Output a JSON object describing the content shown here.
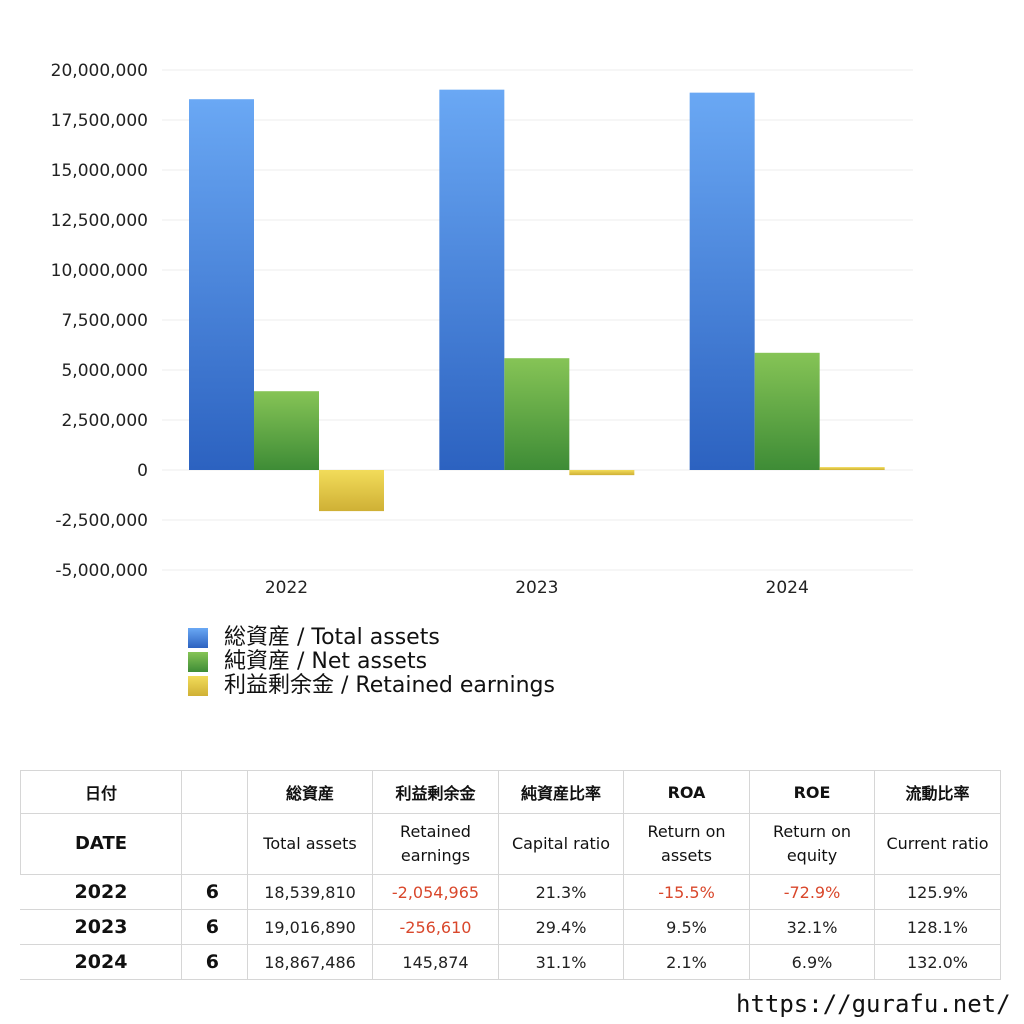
{
  "chart_data": {
    "type": "bar",
    "categories": [
      "2022",
      "2023",
      "2024"
    ],
    "series": [
      {
        "name": "総資産 / Total assets",
        "values": [
          18539810,
          19016890,
          18867486
        ]
      },
      {
        "name": "純資産 / Net assets",
        "values": [
          3940000,
          5590000,
          5860000
        ]
      },
      {
        "name": "利益剰余金 / Retained earnings",
        "values": [
          -2054965,
          -256610,
          145874
        ]
      }
    ],
    "ylim": [
      -5000000,
      20000000
    ],
    "yticks": [
      20000000,
      17500000,
      15000000,
      12500000,
      10000000,
      7500000,
      5000000,
      2500000,
      0,
      -2500000,
      -5000000
    ],
    "ytick_labels": [
      "20,000,000",
      "17,500,000",
      "15,000,000",
      "12,500,000",
      "10,000,000",
      "7,500,000",
      "5,000,000",
      "2,500,000",
      "0",
      "-2,500,000",
      "-5,000,000"
    ],
    "grid": true,
    "legend": "bottom-left",
    "colors": {
      "total_assets": [
        "#6aa8f4",
        "#2c62c0"
      ],
      "net_assets": [
        "#86c456",
        "#3e8c36"
      ],
      "retained_earnings": [
        "#f2dc5a",
        "#cfb035"
      ]
    }
  },
  "legend": {
    "total_assets": "総資産 / Total assets",
    "net_assets": "純資産 / Net assets",
    "retained_earnings": "利益剰余金 / Retained earnings"
  },
  "table": {
    "header_jp": {
      "date": "日付",
      "total_assets": "総資産",
      "retained_earnings": "利益剰余金",
      "capital_ratio": "純資産比率",
      "roa": "ROA",
      "roe": "ROE",
      "current_ratio": "流動比率"
    },
    "header_en": {
      "date": "DATE",
      "total_assets": "Total assets",
      "retained_earnings": "Retained earnings",
      "capital_ratio": "Capital ratio",
      "roa": "Return on assets",
      "roe": "Return on equity",
      "current_ratio": "Current ratio"
    },
    "rows": [
      {
        "year": "2022",
        "month": "6",
        "total_assets": "18,539,810",
        "retained_earnings": "-2,054,965",
        "capital_ratio": "21.3%",
        "roa": "-15.5%",
        "roe": "-72.9%",
        "current_ratio": "125.9%"
      },
      {
        "year": "2023",
        "month": "6",
        "total_assets": "19,016,890",
        "retained_earnings": "-256,610",
        "capital_ratio": "29.4%",
        "roa": "9.5%",
        "roe": "32.1%",
        "current_ratio": "128.1%"
      },
      {
        "year": "2024",
        "month": "6",
        "total_assets": "18,867,486",
        "retained_earnings": "145,874",
        "capital_ratio": "31.1%",
        "roa": "2.1%",
        "roe": "6.9%",
        "current_ratio": "132.0%"
      }
    ],
    "negative_color": "#d9472b"
  },
  "site_url": "https://gurafu.net/"
}
